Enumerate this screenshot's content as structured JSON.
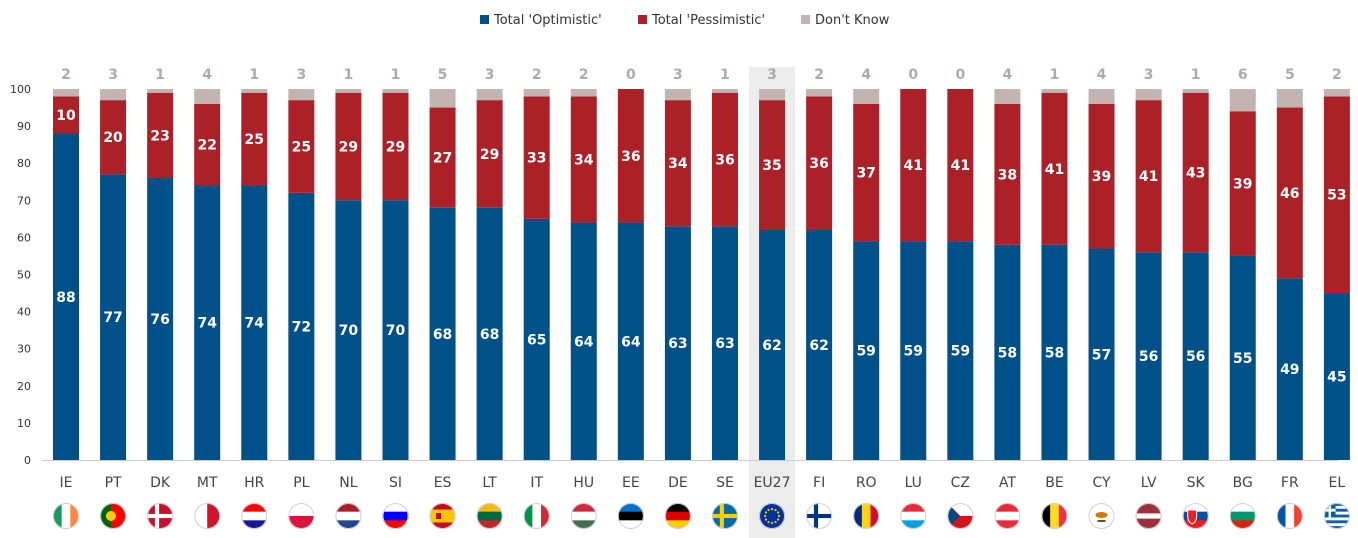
{
  "colors": {
    "optimistic": "#00508a",
    "pessimistic": "#ac2128",
    "dont_know": "#c2b5b1",
    "highlight": "#ececec",
    "axis": "#cccccc"
  },
  "chart_data": {
    "type": "bar",
    "stacked": true,
    "title": "",
    "xlabel": "",
    "ylabel": "",
    "ylim": [
      0,
      100
    ],
    "yticks": [
      0,
      10,
      20,
      30,
      40,
      50,
      60,
      70,
      80,
      90,
      100
    ],
    "grid": false,
    "legend_position": "top-center",
    "highlight_category": "EU27",
    "categories": [
      "IE",
      "PT",
      "DK",
      "MT",
      "HR",
      "PL",
      "NL",
      "SI",
      "ES",
      "LT",
      "IT",
      "HU",
      "EE",
      "DE",
      "SE",
      "EU27",
      "FI",
      "RO",
      "LU",
      "CZ",
      "AT",
      "BE",
      "CY",
      "LV",
      "SK",
      "BG",
      "FR",
      "EL"
    ],
    "series": [
      {
        "name": "Total 'Optimistic'",
        "values": [
          88,
          77,
          76,
          74,
          74,
          72,
          70,
          70,
          68,
          68,
          65,
          64,
          64,
          63,
          63,
          62,
          62,
          59,
          59,
          59,
          58,
          58,
          57,
          56,
          56,
          55,
          49,
          45
        ]
      },
      {
        "name": "Total 'Pessimistic'",
        "values": [
          10,
          20,
          23,
          22,
          25,
          25,
          29,
          29,
          27,
          29,
          33,
          34,
          36,
          34,
          36,
          35,
          36,
          37,
          41,
          41,
          38,
          41,
          39,
          41,
          43,
          39,
          46,
          53
        ]
      },
      {
        "name": "Don't Know",
        "values": [
          2,
          3,
          1,
          4,
          1,
          3,
          1,
          1,
          5,
          3,
          2,
          2,
          0,
          3,
          1,
          3,
          2,
          4,
          0,
          0,
          4,
          1,
          4,
          3,
          1,
          6,
          5,
          2
        ]
      }
    ]
  },
  "flags": [
    {
      "cat": "IE",
      "icon": "flag-ireland-icon",
      "type": "v",
      "colors": [
        "#169b62",
        "#ffffff",
        "#ff883e"
      ]
    },
    {
      "cat": "PT",
      "icon": "flag-portugal-icon",
      "type": "pt",
      "colors": [
        "#006600",
        "#ff0000",
        "#ffcc00"
      ]
    },
    {
      "cat": "DK",
      "icon": "flag-denmark-icon",
      "type": "nordic",
      "colors": [
        "#c8102e",
        "#ffffff"
      ]
    },
    {
      "cat": "MT",
      "icon": "flag-malta-icon",
      "type": "v2",
      "colors": [
        "#ffffff",
        "#cf142b"
      ]
    },
    {
      "cat": "HR",
      "icon": "flag-croatia-icon",
      "type": "h",
      "colors": [
        "#ff0000",
        "#ffffff",
        "#171796"
      ]
    },
    {
      "cat": "PL",
      "icon": "flag-poland-icon",
      "type": "h2",
      "colors": [
        "#ffffff",
        "#dc143c"
      ]
    },
    {
      "cat": "NL",
      "icon": "flag-netherlands-icon",
      "type": "h",
      "colors": [
        "#ae1c28",
        "#ffffff",
        "#21468b"
      ]
    },
    {
      "cat": "SI",
      "icon": "flag-slovenia-icon",
      "type": "h",
      "colors": [
        "#ffffff",
        "#0000ff",
        "#ff0000"
      ]
    },
    {
      "cat": "ES",
      "icon": "flag-spain-icon",
      "type": "es",
      "colors": [
        "#c60b1e",
        "#ffc400"
      ]
    },
    {
      "cat": "LT",
      "icon": "flag-lithuania-icon",
      "type": "h",
      "colors": [
        "#fdb913",
        "#006a44",
        "#c1272d"
      ]
    },
    {
      "cat": "IT",
      "icon": "flag-italy-icon",
      "type": "v",
      "colors": [
        "#009246",
        "#ffffff",
        "#ce2b37"
      ]
    },
    {
      "cat": "HU",
      "icon": "flag-hungary-icon",
      "type": "h",
      "colors": [
        "#cd2a3e",
        "#ffffff",
        "#436f4d"
      ]
    },
    {
      "cat": "EE",
      "icon": "flag-estonia-icon",
      "type": "h",
      "colors": [
        "#0072ce",
        "#000000",
        "#ffffff"
      ]
    },
    {
      "cat": "DE",
      "icon": "flag-germany-icon",
      "type": "h",
      "colors": [
        "#000000",
        "#dd0000",
        "#ffce00"
      ]
    },
    {
      "cat": "SE",
      "icon": "flag-sweden-icon",
      "type": "nordic",
      "colors": [
        "#006aa7",
        "#fecc00"
      ]
    },
    {
      "cat": "EU27",
      "icon": "flag-eu-icon",
      "type": "eu",
      "colors": [
        "#003399",
        "#ffcc00"
      ]
    },
    {
      "cat": "FI",
      "icon": "flag-finland-icon",
      "type": "nordic",
      "colors": [
        "#ffffff",
        "#003580"
      ]
    },
    {
      "cat": "RO",
      "icon": "flag-romania-icon",
      "type": "v",
      "colors": [
        "#002b7f",
        "#fcd116",
        "#ce1126"
      ]
    },
    {
      "cat": "LU",
      "icon": "flag-luxembourg-icon",
      "type": "h",
      "colors": [
        "#ed2939",
        "#ffffff",
        "#00a1de"
      ]
    },
    {
      "cat": "CZ",
      "icon": "flag-czechia-icon",
      "type": "cz",
      "colors": [
        "#ffffff",
        "#d7141a",
        "#11457e"
      ]
    },
    {
      "cat": "AT",
      "icon": "flag-austria-icon",
      "type": "h",
      "colors": [
        "#ed2939",
        "#ffffff",
        "#ed2939"
      ]
    },
    {
      "cat": "BE",
      "icon": "flag-belgium-icon",
      "type": "v",
      "colors": [
        "#000000",
        "#fdda24",
        "#ef3340"
      ]
    },
    {
      "cat": "CY",
      "icon": "flag-cyprus-icon",
      "type": "cy",
      "colors": [
        "#ffffff",
        "#d57800",
        "#4e5b31"
      ]
    },
    {
      "cat": "LV",
      "icon": "flag-latvia-icon",
      "type": "lv",
      "colors": [
        "#9e3039",
        "#ffffff"
      ]
    },
    {
      "cat": "SK",
      "icon": "flag-slovakia-icon",
      "type": "sk",
      "colors": [
        "#ffffff",
        "#0b4ea2",
        "#ee1c25"
      ]
    },
    {
      "cat": "BG",
      "icon": "flag-bulgaria-icon",
      "type": "h",
      "colors": [
        "#ffffff",
        "#00966e",
        "#d62612"
      ]
    },
    {
      "cat": "FR",
      "icon": "flag-france-icon",
      "type": "v",
      "colors": [
        "#0055a4",
        "#ffffff",
        "#ef4135"
      ]
    },
    {
      "cat": "EL",
      "icon": "flag-greece-icon",
      "type": "gr",
      "colors": [
        "#0d5eaf",
        "#ffffff"
      ]
    }
  ]
}
